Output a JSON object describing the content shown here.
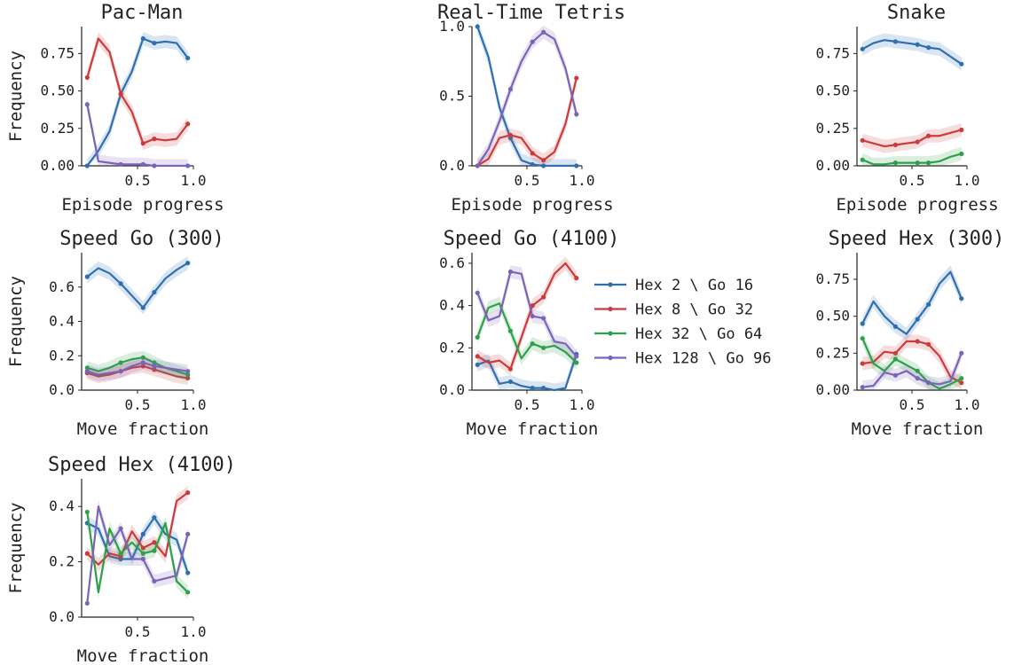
{
  "colors": {
    "blue": "#2f6fb0",
    "red": "#cc3b3b",
    "green": "#2ea04a",
    "purple": "#7b64b8",
    "axis": "#222222"
  },
  "legend": {
    "placement": "right of Speed Go (4100)",
    "entries": [
      {
        "label": "Hex 2 \\ Go 16",
        "color": "#2f6fb0"
      },
      {
        "label": "Hex 8 \\ Go 32",
        "color": "#cc3b3b"
      },
      {
        "label": "Hex 32 \\ Go 64",
        "color": "#2ea04a"
      },
      {
        "label": "Hex 128 \\ Go 96",
        "color": "#7b64b8"
      }
    ]
  },
  "chart_data": [
    {
      "id": "pacman",
      "type": "line",
      "title": "Pac-Man",
      "xlabel": "Episode progress",
      "ylabel": "Frequency",
      "xlim": [
        0,
        1.0
      ],
      "ylim": [
        0,
        0.93
      ],
      "xticks": [
        0.5,
        1.0
      ],
      "xtick_labels": [
        "0.5",
        "1.0"
      ],
      "yticks": [
        0,
        0.25,
        0.5,
        0.75
      ],
      "ytick_labels": [
        "0.00",
        "0.25",
        "0.50",
        "0.75"
      ],
      "grid": false,
      "x": [
        0.05,
        0.15,
        0.25,
        0.35,
        0.45,
        0.55,
        0.65,
        0.75,
        0.85,
        0.95
      ],
      "series": [
        {
          "color": "#2f6fb0",
          "values": [
            0.0,
            0.1,
            0.23,
            0.48,
            0.63,
            0.85,
            0.82,
            0.83,
            0.82,
            0.72
          ]
        },
        {
          "color": "#cc3b3b",
          "values": [
            0.59,
            0.85,
            0.76,
            0.48,
            0.36,
            0.15,
            0.18,
            0.17,
            0.18,
            0.28
          ]
        },
        {
          "color": "#7b64b8",
          "values": [
            0.41,
            0.03,
            0.02,
            0.01,
            0.01,
            0.01,
            0.0,
            0.0,
            0.0,
            0.0
          ]
        }
      ]
    },
    {
      "id": "tetris",
      "type": "line",
      "title": "Real-Time Tetris",
      "xlabel": "Episode progress",
      "ylabel": "",
      "xlim": [
        0,
        1.0
      ],
      "ylim": [
        0,
        1.0
      ],
      "xticks": [
        0.5,
        1.0
      ],
      "xtick_labels": [
        "0.5",
        "1.0"
      ],
      "yticks": [
        0,
        0.5,
        1.0
      ],
      "ytick_labels": [
        "0.0",
        "0.5",
        "1.0"
      ],
      "grid": false,
      "x": [
        0.05,
        0.15,
        0.25,
        0.35,
        0.45,
        0.55,
        0.65,
        0.75,
        0.85,
        0.95
      ],
      "series": [
        {
          "color": "#2f6fb0",
          "values": [
            1.0,
            0.78,
            0.42,
            0.2,
            0.04,
            0.01,
            0.0,
            0.0,
            0.0,
            0.0
          ]
        },
        {
          "color": "#cc3b3b",
          "values": [
            0.0,
            0.05,
            0.2,
            0.22,
            0.2,
            0.09,
            0.04,
            0.1,
            0.3,
            0.63
          ]
        },
        {
          "color": "#7b64b8",
          "values": [
            0.0,
            0.12,
            0.32,
            0.55,
            0.75,
            0.89,
            0.96,
            0.91,
            0.7,
            0.37
          ]
        }
      ]
    },
    {
      "id": "snake",
      "type": "line",
      "title": "Snake",
      "xlabel": "Episode progress",
      "ylabel": "",
      "xlim": [
        0,
        1.0
      ],
      "ylim": [
        0,
        0.93
      ],
      "xticks": [
        0.5,
        1.0
      ],
      "xtick_labels": [
        "0.5",
        "1.0"
      ],
      "yticks": [
        0,
        0.25,
        0.5,
        0.75
      ],
      "ytick_labels": [
        "0.00",
        "0.25",
        "0.50",
        "0.75"
      ],
      "grid": false,
      "x": [
        0.05,
        0.15,
        0.25,
        0.35,
        0.45,
        0.55,
        0.65,
        0.75,
        0.85,
        0.95
      ],
      "series": [
        {
          "color": "#2f6fb0",
          "values": [
            0.78,
            0.82,
            0.84,
            0.83,
            0.82,
            0.81,
            0.79,
            0.78,
            0.73,
            0.68
          ]
        },
        {
          "color": "#cc3b3b",
          "values": [
            0.17,
            0.15,
            0.13,
            0.14,
            0.15,
            0.16,
            0.2,
            0.2,
            0.22,
            0.24
          ]
        },
        {
          "color": "#2ea04a",
          "values": [
            0.04,
            0.01,
            0.01,
            0.02,
            0.02,
            0.02,
            0.02,
            0.03,
            0.06,
            0.08
          ]
        }
      ]
    },
    {
      "id": "speed-go-300",
      "type": "line",
      "title": "Speed Go (300)",
      "xlabel": "Move fraction",
      "ylabel": "Frequency",
      "xlim": [
        0,
        1.0
      ],
      "ylim": [
        0,
        0.8
      ],
      "xticks": [
        0.5,
        1.0
      ],
      "xtick_labels": [
        "0.5",
        "1.0"
      ],
      "yticks": [
        0,
        0.2,
        0.4,
        0.6
      ],
      "ytick_labels": [
        "0.0",
        "0.2",
        "0.4",
        "0.6"
      ],
      "grid": false,
      "x": [
        0.05,
        0.15,
        0.25,
        0.35,
        0.45,
        0.55,
        0.65,
        0.75,
        0.85,
        0.95
      ],
      "series": [
        {
          "color": "#2f6fb0",
          "values": [
            0.66,
            0.71,
            0.68,
            0.62,
            0.55,
            0.48,
            0.57,
            0.65,
            0.7,
            0.74
          ]
        },
        {
          "color": "#cc3b3b",
          "values": [
            0.1,
            0.08,
            0.09,
            0.11,
            0.13,
            0.14,
            0.12,
            0.1,
            0.08,
            0.07
          ]
        },
        {
          "color": "#2ea04a",
          "values": [
            0.13,
            0.11,
            0.13,
            0.16,
            0.18,
            0.19,
            0.16,
            0.13,
            0.11,
            0.09
          ]
        },
        {
          "color": "#7b64b8",
          "values": [
            0.11,
            0.09,
            0.1,
            0.11,
            0.14,
            0.16,
            0.14,
            0.13,
            0.12,
            0.11
          ]
        }
      ]
    },
    {
      "id": "speed-go-4100",
      "type": "line",
      "title": "Speed Go (4100)",
      "xlabel": "Move fraction",
      "ylabel": "",
      "xlim": [
        0,
        1.0
      ],
      "ylim": [
        0,
        0.65
      ],
      "xticks": [
        0.5,
        1.0
      ],
      "xtick_labels": [
        "0.5",
        "1.0"
      ],
      "yticks": [
        0,
        0.2,
        0.4,
        0.6
      ],
      "ytick_labels": [
        "0.0",
        "0.2",
        "0.4",
        "0.6"
      ],
      "grid": false,
      "x": [
        0.05,
        0.15,
        0.25,
        0.35,
        0.45,
        0.55,
        0.65,
        0.75,
        0.85,
        0.95
      ],
      "series": [
        {
          "color": "#2f6fb0",
          "values": [
            0.12,
            0.14,
            0.03,
            0.04,
            0.02,
            0.01,
            0.01,
            0.0,
            0.01,
            0.17
          ]
        },
        {
          "color": "#cc3b3b",
          "values": [
            0.16,
            0.13,
            0.14,
            0.1,
            0.25,
            0.4,
            0.44,
            0.55,
            0.6,
            0.53
          ]
        },
        {
          "color": "#2ea04a",
          "values": [
            0.25,
            0.39,
            0.41,
            0.28,
            0.15,
            0.22,
            0.2,
            0.21,
            0.18,
            0.13
          ]
        },
        {
          "color": "#7b64b8",
          "values": [
            0.46,
            0.33,
            0.35,
            0.56,
            0.55,
            0.35,
            0.34,
            0.23,
            0.22,
            0.16
          ]
        }
      ]
    },
    {
      "id": "speed-hex-300",
      "type": "line",
      "title": "Speed Hex (300)",
      "xlabel": "Move fraction",
      "ylabel": "",
      "xlim": [
        0,
        1.0
      ],
      "ylim": [
        0,
        0.93
      ],
      "xticks": [
        0.5,
        1.0
      ],
      "xtick_labels": [
        "0.5",
        "1.0"
      ],
      "yticks": [
        0,
        0.25,
        0.5,
        0.75
      ],
      "ytick_labels": [
        "0.00",
        "0.25",
        "0.50",
        "0.75"
      ],
      "grid": false,
      "x": [
        0.05,
        0.15,
        0.25,
        0.35,
        0.45,
        0.55,
        0.65,
        0.75,
        0.85,
        0.95
      ],
      "series": [
        {
          "color": "#2f6fb0",
          "values": [
            0.45,
            0.6,
            0.5,
            0.43,
            0.38,
            0.48,
            0.58,
            0.72,
            0.8,
            0.62
          ]
        },
        {
          "color": "#cc3b3b",
          "values": [
            0.18,
            0.19,
            0.26,
            0.25,
            0.33,
            0.33,
            0.31,
            0.23,
            0.09,
            0.05
          ]
        },
        {
          "color": "#2ea04a",
          "values": [
            0.35,
            0.18,
            0.13,
            0.21,
            0.17,
            0.13,
            0.05,
            0.01,
            0.04,
            0.08
          ]
        },
        {
          "color": "#7b64b8",
          "values": [
            0.02,
            0.03,
            0.12,
            0.1,
            0.13,
            0.08,
            0.05,
            0.04,
            0.06,
            0.25
          ]
        }
      ]
    },
    {
      "id": "speed-hex-4100",
      "type": "line",
      "title": "Speed Hex (4100)",
      "xlabel": "Move fraction",
      "ylabel": "Frequency",
      "xlim": [
        0,
        1.0
      ],
      "ylim": [
        0,
        0.5
      ],
      "xticks": [
        0.5,
        1.0
      ],
      "xtick_labels": [
        "0.5",
        "1.0"
      ],
      "yticks": [
        0,
        0.2,
        0.4
      ],
      "ytick_labels": [
        "0.0",
        "0.2",
        "0.4"
      ],
      "grid": false,
      "x": [
        0.05,
        0.15,
        0.25,
        0.35,
        0.45,
        0.55,
        0.65,
        0.75,
        0.85,
        0.95
      ],
      "series": [
        {
          "color": "#2f6fb0",
          "values": [
            0.34,
            0.32,
            0.22,
            0.21,
            0.21,
            0.3,
            0.36,
            0.3,
            0.28,
            0.16
          ]
        },
        {
          "color": "#cc3b3b",
          "values": [
            0.23,
            0.19,
            0.23,
            0.22,
            0.31,
            0.25,
            0.27,
            0.22,
            0.42,
            0.45
          ]
        },
        {
          "color": "#2ea04a",
          "values": [
            0.38,
            0.09,
            0.32,
            0.23,
            0.27,
            0.23,
            0.24,
            0.34,
            0.13,
            0.09
          ]
        },
        {
          "color": "#7b64b8",
          "values": [
            0.05,
            0.4,
            0.26,
            0.32,
            0.21,
            0.21,
            0.13,
            0.14,
            0.15,
            0.3
          ]
        }
      ]
    }
  ]
}
